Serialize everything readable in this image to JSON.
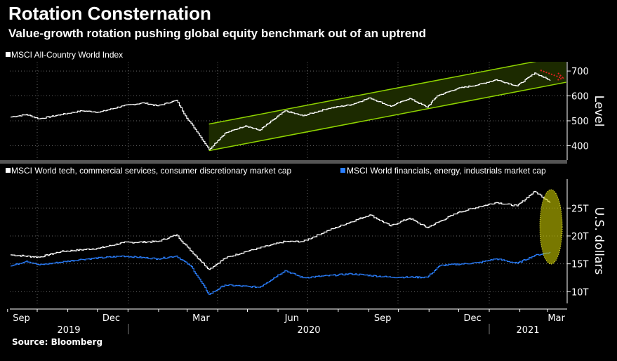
{
  "title": "Rotation Consternation",
  "subtitle": "Value-growth rotation pushing global equity benchmark out of an uptrend",
  "source": "Source: Bloomberg",
  "chart_data": [
    {
      "type": "line",
      "ylabel": "Level",
      "ylim": [
        342,
        737
      ],
      "yticks": [
        400,
        500,
        600,
        700
      ],
      "grid": true,
      "legend_position": "top-left",
      "series": [
        {
          "name": "MSCI All-Country World Index",
          "color": "#ffffff",
          "points": [
            [
              "2019-09-04",
              515
            ],
            [
              "2019-09-20",
              525
            ],
            [
              "2019-10-03",
              508
            ],
            [
              "2019-10-25",
              525
            ],
            [
              "2019-11-15",
              540
            ],
            [
              "2019-12-03",
              535
            ],
            [
              "2019-12-27",
              560
            ],
            [
              "2020-01-17",
              572
            ],
            [
              "2020-01-31",
              560
            ],
            [
              "2020-02-19",
              582
            ],
            [
              "2020-02-28",
              520
            ],
            [
              "2020-03-12",
              450
            ],
            [
              "2020-03-23",
              385
            ],
            [
              "2020-04-08",
              450
            ],
            [
              "2020-04-29",
              480
            ],
            [
              "2020-05-13",
              462
            ],
            [
              "2020-06-08",
              540
            ],
            [
              "2020-06-26",
              520
            ],
            [
              "2020-07-22",
              550
            ],
            [
              "2020-08-14",
              565
            ],
            [
              "2020-09-02",
              592
            ],
            [
              "2020-09-23",
              558
            ],
            [
              "2020-10-12",
              590
            ],
            [
              "2020-10-30",
              555
            ],
            [
              "2020-11-09",
              600
            ],
            [
              "2020-11-30",
              630
            ],
            [
              "2020-12-21",
              645
            ],
            [
              "2021-01-08",
              665
            ],
            [
              "2021-01-29",
              640
            ],
            [
              "2021-02-16",
              692
            ],
            [
              "2021-03-04",
              662
            ]
          ]
        }
      ],
      "channel": {
        "color": "#8fd400",
        "lower": [
          [
            "2020-03-23",
            380
          ],
          [
            "2021-03-20",
            655
          ]
        ],
        "upper": [
          [
            "2020-03-23",
            487
          ],
          [
            "2021-03-20",
            762
          ]
        ]
      },
      "annotation": {
        "type": "dotted-arrow",
        "color": "#e02020"
      }
    },
    {
      "type": "line",
      "ylabel": "U.S. dollars",
      "ylim": [
        7.9,
        30.2
      ],
      "yticks": [
        "10T",
        "15T",
        "20T",
        "25T"
      ],
      "ytick_values": [
        10,
        15,
        20,
        25
      ],
      "grid": true,
      "legend_position": "top-left",
      "series": [
        {
          "name": "MSCI World tech, commercial services, consumer discretionary market cap",
          "color": "#ffffff",
          "points": [
            [
              "2019-09-04",
              16.6
            ],
            [
              "2019-10-03",
              16.2
            ],
            [
              "2019-10-25",
              17.2
            ],
            [
              "2019-12-03",
              17.8
            ],
            [
              "2019-12-27",
              18.8
            ],
            [
              "2020-01-31",
              19
            ],
            [
              "2020-02-19",
              20.2
            ],
            [
              "2020-03-01",
              18
            ],
            [
              "2020-03-23",
              14
            ],
            [
              "2020-04-08",
              16
            ],
            [
              "2020-04-29",
              17.2
            ],
            [
              "2020-06-08",
              19
            ],
            [
              "2020-06-26",
              19
            ],
            [
              "2020-07-22",
              21
            ],
            [
              "2020-09-02",
              23.8
            ],
            [
              "2020-09-23",
              21.8
            ],
            [
              "2020-10-12",
              23.2
            ],
            [
              "2020-10-30",
              21.5
            ],
            [
              "2020-11-30",
              24.2
            ],
            [
              "2020-12-21",
              25.2
            ],
            [
              "2021-01-08",
              26
            ],
            [
              "2021-01-29",
              25.4
            ],
            [
              "2021-02-16",
              28
            ],
            [
              "2021-03-04",
              26
            ]
          ]
        },
        {
          "name": "MSCI World financials, energy, industrials market cap",
          "color": "#2a7fff",
          "points": [
            [
              "2019-09-04",
              14.6
            ],
            [
              "2019-09-20",
              15.5
            ],
            [
              "2019-10-03",
              14.8
            ],
            [
              "2019-11-15",
              15.8
            ],
            [
              "2019-12-27",
              16.4
            ],
            [
              "2020-01-31",
              15.9
            ],
            [
              "2020-02-19",
              16.4
            ],
            [
              "2020-03-05",
              14.5
            ],
            [
              "2020-03-23",
              9.5
            ],
            [
              "2020-04-08",
              11.2
            ],
            [
              "2020-05-13",
              10.8
            ],
            [
              "2020-06-08",
              13.8
            ],
            [
              "2020-06-26",
              12.5
            ],
            [
              "2020-08-14",
              13.2
            ],
            [
              "2020-09-23",
              12.6
            ],
            [
              "2020-10-30",
              12.6
            ],
            [
              "2020-11-12",
              14.7
            ],
            [
              "2020-12-21",
              15.2
            ],
            [
              "2021-01-08",
              15.9
            ],
            [
              "2021-01-29",
              15.1
            ],
            [
              "2021-02-16",
              16.5
            ],
            [
              "2021-03-04",
              17.1
            ]
          ]
        }
      ],
      "annotation": {
        "type": "ellipse",
        "color": "#e8e800"
      }
    }
  ],
  "x_axis": {
    "months": [
      [
        "2019-09-15",
        "Sep"
      ],
      [
        "2019-12-15",
        "Dec"
      ],
      [
        "2020-03-15",
        "Mar"
      ],
      [
        "2020-06-15",
        "Jun"
      ],
      [
        "2020-09-15",
        "Sep"
      ],
      [
        "2020-12-15",
        "Dec"
      ],
      [
        "2021-03-10",
        "Mar"
      ]
    ],
    "years": [
      "2019",
      "2020",
      "2021"
    ]
  }
}
